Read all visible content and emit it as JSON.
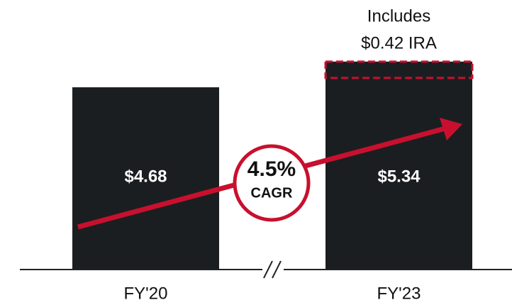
{
  "chart_data": {
    "type": "bar",
    "categories": [
      "FY'20",
      "FY'23"
    ],
    "values": [
      4.68,
      5.34
    ],
    "value_labels": [
      "$4.68",
      "$5.34"
    ],
    "color": "#1b1e21",
    "annotation": {
      "lines": [
        "Includes",
        "$0.42 IRA"
      ],
      "value": 0.42,
      "color": "#c8102e"
    },
    "cagr": {
      "value": "4.5%",
      "label": "CAGR",
      "color": "#c8102e"
    }
  }
}
